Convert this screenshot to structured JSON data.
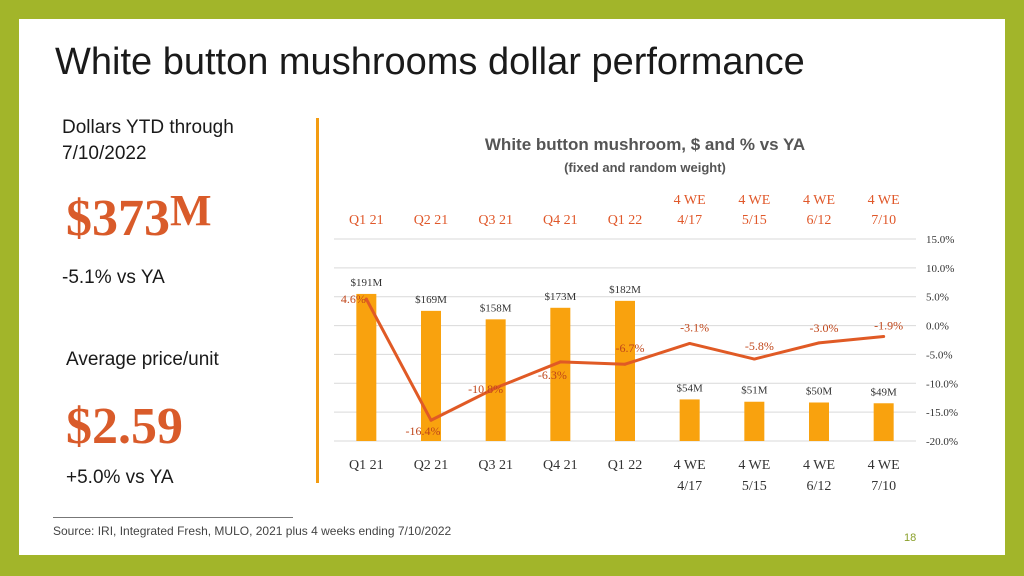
{
  "title": "White button mushrooms dollar performance",
  "ytd": {
    "label": "Dollars YTD through 7/10/2022",
    "value": "$373",
    "unit": "M",
    "change": "-5.1% vs YA"
  },
  "price": {
    "label": "Average price/unit",
    "value": "$2.59",
    "change": "+5.0% vs YA"
  },
  "source": "Source: IRI, Integrated Fresh, MULO, 2021 plus 4 weeks ending 7/10/2022",
  "page_number": "18",
  "colors": {
    "accent": "#d95b2a",
    "bar": "#f9a20e",
    "line": "#e05a25",
    "frame": "#a2b52a"
  },
  "chart_data": {
    "type": "bar",
    "title": "White button mushroom, $ and % vs YA",
    "subtitle": "(fixed and random weight)",
    "categories": [
      "Q1 21",
      "Q2 21",
      "Q3 21",
      "Q4 21",
      "Q1 22",
      "4 WE 4/17",
      "4 WE 5/15",
      "4 WE 6/12",
      "4 WE 7/10"
    ],
    "series": [
      {
        "type": "bar",
        "axis": "left",
        "values": [
          191,
          169,
          158,
          173,
          182,
          54,
          51,
          50,
          49
        ],
        "labels": [
          "$191M",
          "$169M",
          "$158M",
          "$173M",
          "$182M",
          "$54M",
          "$51M",
          "$50M",
          "$49M"
        ]
      },
      {
        "type": "line",
        "axis": "right",
        "values": [
          4.6,
          -16.4,
          -10.8,
          -6.3,
          -6.7,
          -3.1,
          -5.8,
          -3.0,
          -1.9
        ],
        "labels": [
          "4.6%",
          "-16.4%",
          "-10.8%",
          "-6.3%",
          "-6.7%",
          "-3.1%",
          "-5.8%",
          "-3.0%",
          "-1.9%"
        ]
      }
    ],
    "y2_ticks": [
      "15.0%",
      "10.0%",
      "5.0%",
      "0.0%",
      "-5.0%",
      "-10.0%",
      "-15.0%",
      "-20.0%"
    ],
    "y2lim": [
      -20,
      15
    ],
    "grid": true,
    "legend": "none"
  }
}
